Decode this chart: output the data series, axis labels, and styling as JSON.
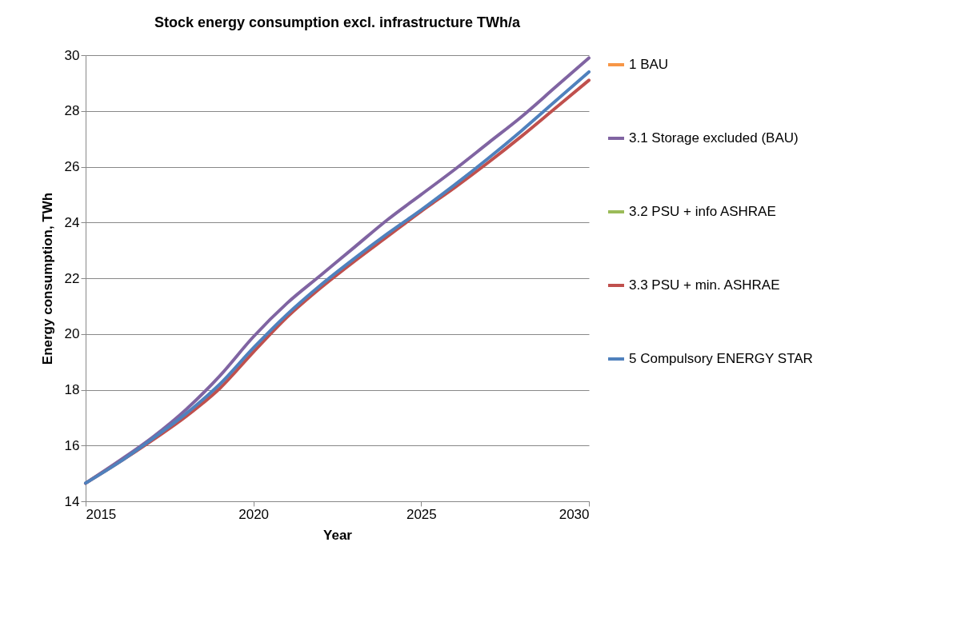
{
  "chart_data": {
    "type": "line",
    "title": "Stock energy consumption excl. infrastructure TWh/a",
    "xlabel": "Year",
    "ylabel": "Energy consumption, TWh",
    "x": [
      2015,
      2016,
      2017,
      2018,
      2019,
      2020,
      2021,
      2022,
      2023,
      2024,
      2025,
      2026,
      2027,
      2028,
      2029,
      2030
    ],
    "series": [
      {
        "name": "1 BAU",
        "color": "#f79646",
        "values": [
          null,
          null,
          null,
          null,
          null,
          null,
          null,
          null,
          null,
          null,
          null,
          null,
          null,
          null,
          null,
          null
        ]
      },
      {
        "name": "3.1 Storage excluded (BAU)",
        "color": "#8064a2",
        "values": [
          14.65,
          15.45,
          16.3,
          17.3,
          18.5,
          19.9,
          21.1,
          22.1,
          23.1,
          24.1,
          25.0,
          25.9,
          26.85,
          27.8,
          28.85,
          29.9
        ]
      },
      {
        "name": "3.2 PSU + info ASHRAE",
        "color": "#9bbb59",
        "values": [
          null,
          null,
          null,
          null,
          null,
          null,
          null,
          null,
          null,
          null,
          null,
          null,
          null,
          null,
          null,
          null
        ]
      },
      {
        "name": "3.3 PSU + min. ASHRAE",
        "color": "#c0504d",
        "values": [
          14.65,
          15.4,
          16.2,
          17.05,
          18.05,
          19.35,
          20.6,
          21.65,
          22.6,
          23.5,
          24.4,
          25.25,
          26.15,
          27.1,
          28.1,
          29.1
        ]
      },
      {
        "name": "5 Compulsory ENERGY STAR",
        "color": "#4f81bd",
        "values": [
          14.65,
          15.4,
          16.25,
          17.15,
          18.2,
          19.5,
          20.7,
          21.75,
          22.7,
          23.6,
          24.45,
          25.35,
          26.3,
          27.3,
          28.35,
          29.4
        ]
      }
    ],
    "xlim": [
      2015,
      2030
    ],
    "xticks": [
      2015,
      2020,
      2025,
      2030
    ],
    "ylim": [
      14,
      30
    ],
    "yticks": [
      14,
      16,
      18,
      20,
      22,
      24,
      26,
      28,
      30
    ],
    "grid": "y",
    "legend": "right",
    "marker": "none",
    "line_style": "solid"
  }
}
